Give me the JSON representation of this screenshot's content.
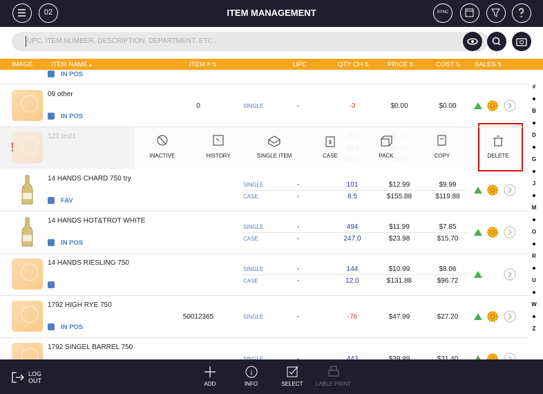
{
  "header": {
    "title": "ITEM MANAGEMENT",
    "date": "02",
    "sync": "SYNC"
  },
  "search": {
    "placeholder": "UPC, ITEM NUMBER, DESCRIPTION, DEPARTMENT, ETC.."
  },
  "columns": [
    "IMAGE",
    "ITEM NAME",
    "ITEM #",
    "UPC",
    "QTY OH",
    "PRICE",
    "COST",
    "SALES"
  ],
  "top_row": {
    "tag": "IN POS"
  },
  "rows": [
    {
      "name": "09 other",
      "tag": "IN POS",
      "item_number": "0",
      "image": "placeholder",
      "gear": true,
      "lines": [
        {
          "type": "SINGLE",
          "upc": "-",
          "qty": "-3",
          "price": "$0.00",
          "cost": "$0.00"
        }
      ]
    },
    {
      "name": "14 HANDS CHARD 750 try",
      "tag": "FAV",
      "item_number": "",
      "image": "bottle",
      "gear": true,
      "lines": [
        {
          "type": "SINGLE",
          "upc": "-",
          "qty": "101",
          "price": "$12.99",
          "cost": "$9.99"
        },
        {
          "type": "CASE",
          "upc": "-",
          "qty": "8.5",
          "price": "$155.88",
          "cost": "$119.88"
        }
      ]
    },
    {
      "name": "14 HANDS HOT&TROT WHITE",
      "tag": "IN POS",
      "item_number": "",
      "image": "bottle",
      "gear": true,
      "lines": [
        {
          "type": "SINGLE",
          "upc": "-",
          "qty": "494",
          "price": "$11.99",
          "cost": "$7.85"
        },
        {
          "type": "CASE",
          "upc": "-",
          "qty": "247.0",
          "price": "$23.98",
          "cost": "$15.70"
        }
      ]
    },
    {
      "name": "14 HANDS RIESLING 750",
      "tag": "",
      "item_number": "",
      "image": "placeholder",
      "gear": false,
      "lines": [
        {
          "type": "SINGLE",
          "upc": "-",
          "qty": "144",
          "price": "$10.99",
          "cost": "$8.06"
        },
        {
          "type": "CASE",
          "upc": "-",
          "qty": "12.0",
          "price": "$131.88",
          "cost": "$96.72"
        }
      ]
    },
    {
      "name": "1792 HIGH RYE 750",
      "tag": "IN POS",
      "item_number": "50012365",
      "image": "placeholder",
      "gear": true,
      "lines": [
        {
          "type": "SINGLE",
          "upc": "-",
          "qty": "-76",
          "price": "$47.99",
          "cost": "$27.20"
        }
      ]
    },
    {
      "name": "1792 SINGEL BARREL  750",
      "tag": "",
      "item_number": "",
      "image": "placeholder",
      "gear": true,
      "lines": [
        {
          "type": "SINGLE",
          "upc": "-",
          "qty": "443",
          "price": "$39.99",
          "cost": "$31.40"
        }
      ]
    }
  ],
  "swiped_row": {
    "name": "123 test1",
    "qty": [
      "156",
      "52.0",
      "31.1"
    ],
    "price": [
      "$5.15",
      "$5.45",
      "$0.75"
    ],
    "actions": [
      "INACTIVE",
      "HISTORY",
      "SINGLE ITEM",
      "CASE",
      "PACK",
      "COPY",
      "DELETE"
    ]
  },
  "index": [
    "#",
    "B",
    "D",
    "G",
    "J",
    "M",
    "O",
    "R",
    "U",
    "W",
    "Z"
  ],
  "footer": {
    "logout": "LOG OUT",
    "actions": [
      "ADD",
      "INFO",
      "SELECT",
      "LABLE PRINT"
    ]
  }
}
